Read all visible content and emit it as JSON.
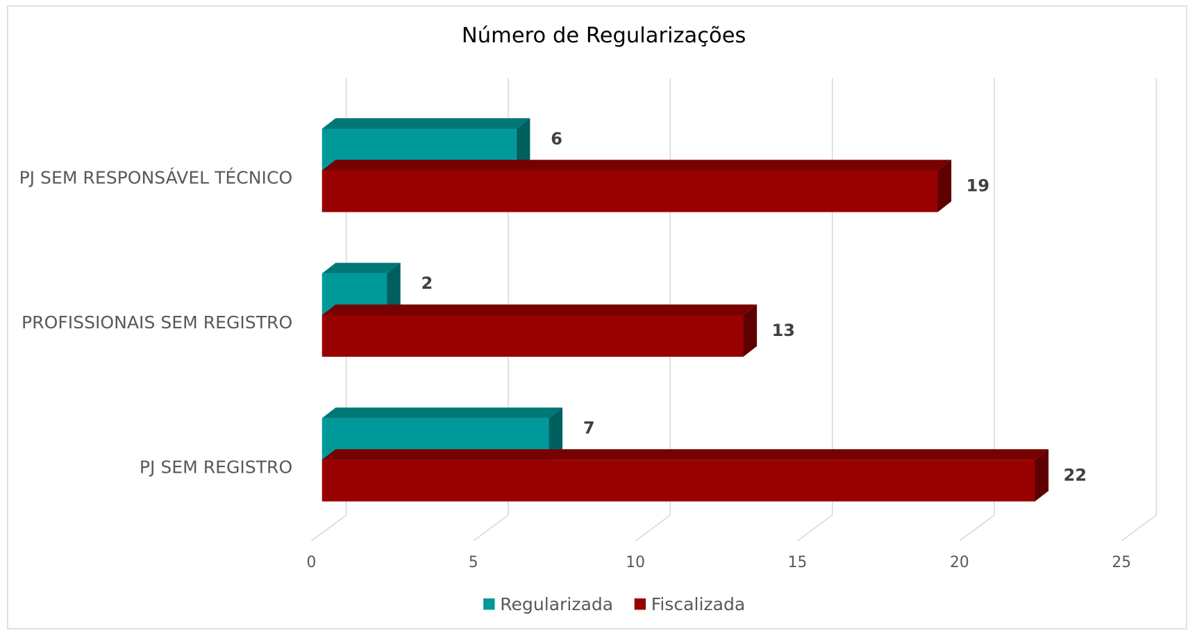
{
  "chart_data": {
    "type": "bar3d",
    "orientation": "horizontal",
    "title": "Número de Regularizações",
    "categories": [
      "PJ SEM RESPONSÁVEL TÉCNICO",
      "PROFISSIONAIS SEM REGISTRO",
      "PJ SEM REGISTRO"
    ],
    "series": [
      {
        "name": "Regularizada",
        "color": "#009999",
        "values": [
          6,
          2,
          7
        ]
      },
      {
        "name": "Fiscalizada",
        "color": "#990000",
        "values": [
          19,
          13,
          22
        ]
      }
    ],
    "xlim": [
      0,
      25
    ],
    "xticks": [
      0,
      5,
      10,
      15,
      20,
      25
    ],
    "grid": true,
    "legend": "bottom"
  }
}
